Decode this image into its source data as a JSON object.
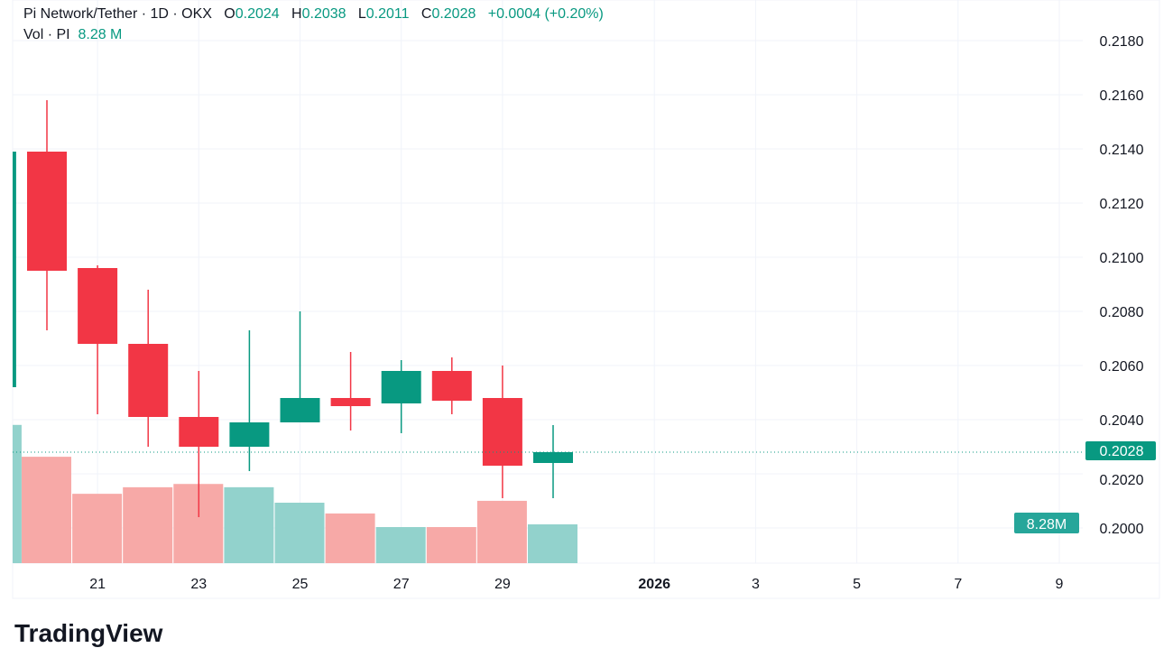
{
  "header": {
    "symbol": "Pi Network/Tether · 1D · OKX",
    "o_label": "O",
    "o": "0.2024",
    "h_label": "H",
    "h": "0.2038",
    "l_label": "L",
    "l": "0.2011",
    "c_label": "C",
    "c": "0.2028",
    "change": "+0.0004 (+0.20%)",
    "vol_label": "Vol · PI",
    "vol": "8.28 M"
  },
  "logo": "TradingView",
  "colors": {
    "up": "#089981",
    "down": "#f23645",
    "up_vol": "#92d2cc",
    "down_vol": "#f7a9a7"
  },
  "chart_data": {
    "type": "candlestick",
    "ylim": [
      0.1995,
      0.2195
    ],
    "y_ticks": [
      "0.2180",
      "0.2160",
      "0.2140",
      "0.2120",
      "0.2100",
      "0.2080",
      "0.2060",
      "0.2040",
      "0.2020",
      "0.2000"
    ],
    "x_ticks": [
      {
        "day": 21,
        "label": "21"
      },
      {
        "day": 23,
        "label": "23"
      },
      {
        "day": 25,
        "label": "25"
      },
      {
        "day": 27,
        "label": "27"
      },
      {
        "day": 29,
        "label": "29"
      },
      {
        "day": 32,
        "label": "2026",
        "bold": true
      },
      {
        "day": 34,
        "label": "3"
      },
      {
        "day": 36,
        "label": "5"
      },
      {
        "day": 38,
        "label": "7"
      },
      {
        "day": 40,
        "label": "9"
      }
    ],
    "last_price": "0.2028",
    "last_volume": "8.28M",
    "candles": [
      {
        "day": 19,
        "o": 0.2052,
        "h": 0.2139,
        "l": 0.2052,
        "c": 0.2139,
        "v": 29.5
      },
      {
        "day": 20,
        "o": 0.2139,
        "h": 0.2158,
        "l": 0.2073,
        "c": 0.2095,
        "v": 22.7
      },
      {
        "day": 21,
        "o": 0.2096,
        "h": 0.2097,
        "l": 0.2042,
        "c": 0.2068,
        "v": 14.8
      },
      {
        "day": 22,
        "o": 0.2068,
        "h": 0.2088,
        "l": 0.203,
        "c": 0.2041,
        "v": 16.2
      },
      {
        "day": 23,
        "o": 0.2041,
        "h": 0.2058,
        "l": 0.2004,
        "c": 0.203,
        "v": 16.9
      },
      {
        "day": 24,
        "o": 0.203,
        "h": 0.2073,
        "l": 0.2021,
        "c": 0.2039,
        "v": 16.2
      },
      {
        "day": 25,
        "o": 0.2039,
        "h": 0.208,
        "l": 0.2039,
        "c": 0.2048,
        "v": 12.9
      },
      {
        "day": 26,
        "o": 0.2048,
        "h": 0.2065,
        "l": 0.2036,
        "c": 0.2045,
        "v": 10.6
      },
      {
        "day": 27,
        "o": 0.2046,
        "h": 0.2062,
        "l": 0.2035,
        "c": 0.2058,
        "v": 7.7
      },
      {
        "day": 28,
        "o": 0.2058,
        "h": 0.2063,
        "l": 0.2042,
        "c": 0.2047,
        "v": 7.7
      },
      {
        "day": 29,
        "o": 0.2048,
        "h": 0.206,
        "l": 0.2011,
        "c": 0.2023,
        "v": 13.3
      },
      {
        "day": 30,
        "o": 0.2024,
        "h": 0.2038,
        "l": 0.2011,
        "c": 0.2028,
        "v": 8.28
      }
    ]
  }
}
